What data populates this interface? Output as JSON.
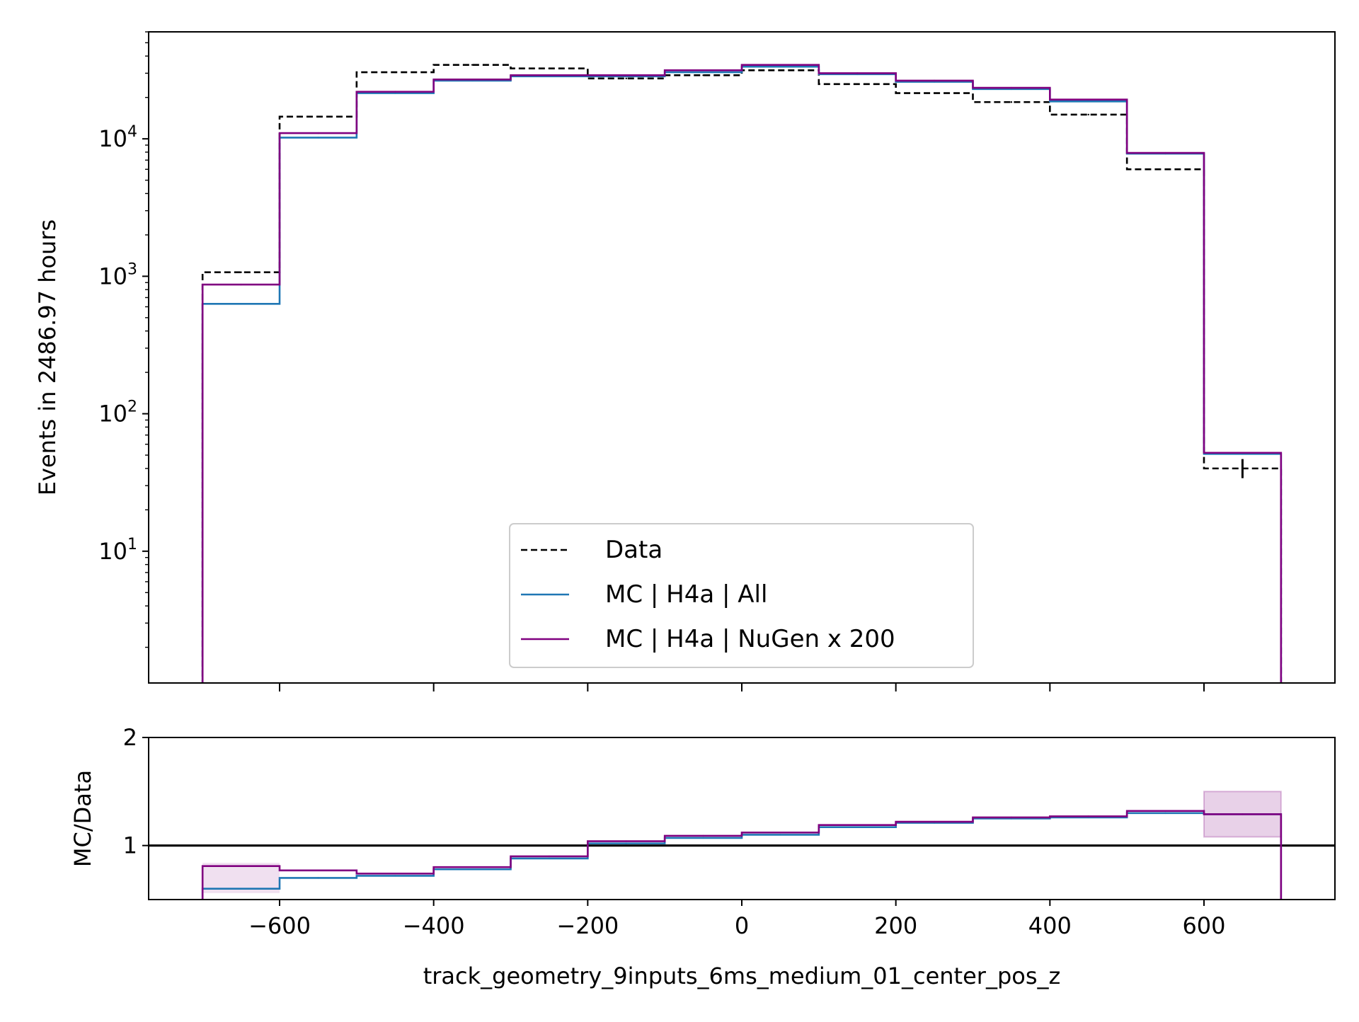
{
  "chart_data": [
    {
      "type": "histogram-step",
      "panel": "main",
      "xlabel": "",
      "ylabel": "Events in 2486.97 hours",
      "yscale": "log",
      "ylim": [
        1.1,
        60000
      ],
      "xlim": [
        -770,
        770
      ],
      "bin_edges": [
        -700,
        -600,
        -500,
        -400,
        -300,
        -200,
        -100,
        0,
        100,
        200,
        300,
        400,
        500,
        600,
        700
      ],
      "yticks": [
        {
          "value": 10,
          "base": "10",
          "exp": "1"
        },
        {
          "value": 100,
          "base": "10",
          "exp": "2"
        },
        {
          "value": 1000,
          "base": "10",
          "exp": "3"
        },
        {
          "value": 10000,
          "base": "10",
          "exp": "4"
        }
      ],
      "series": [
        {
          "name": "Data",
          "color": "#000000",
          "style": "dashed",
          "values": [
            1070,
            14500,
            30500,
            34500,
            32500,
            27500,
            29000,
            31500,
            25000,
            21500,
            18500,
            15000,
            6000,
            40
          ]
        },
        {
          "name": "MC | H4a | All",
          "color": "#1f77b4",
          "style": "solid",
          "values": [
            630,
            10200,
            21500,
            26500,
            28500,
            28500,
            30500,
            33500,
            29500,
            26000,
            23000,
            18700,
            7800,
            51
          ]
        },
        {
          "name": "MC | H4a | NuGen x 200",
          "color": "#800080",
          "style": "solid",
          "values": [
            870,
            11000,
            22000,
            27000,
            29000,
            29000,
            31500,
            34500,
            30000,
            26500,
            23500,
            19300,
            7900,
            52
          ]
        }
      ],
      "legend": "lower-center"
    },
    {
      "type": "ratio-step",
      "panel": "ratio",
      "xlabel": "track_geometry_9inputs_6ms_medium_01_center_pos_z",
      "ylabel": "MC/Data",
      "ylim": [
        0.5,
        2
      ],
      "xlim": [
        -770,
        770
      ],
      "yticks": [
        1,
        2
      ],
      "xticks": [
        -600,
        -400,
        -200,
        0,
        200,
        400,
        600
      ],
      "xtick_labels": [
        "−600",
        "−400",
        "−200",
        "0",
        "200",
        "400",
        "600"
      ],
      "reference_line": 1,
      "bin_edges": [
        -700,
        -600,
        -500,
        -400,
        -300,
        -200,
        -100,
        0,
        100,
        200,
        300,
        400,
        500,
        600,
        700
      ],
      "series": [
        {
          "name": "MC | H4a | All",
          "color": "#1f77b4",
          "values": [
            0.6,
            0.7,
            0.72,
            0.78,
            0.88,
            1.02,
            1.07,
            1.1,
            1.17,
            1.21,
            1.25,
            1.26,
            1.3,
            1.29
          ]
        },
        {
          "name": "MC | H4a | NuGen x 200",
          "color": "#800080",
          "values": [
            0.81,
            0.77,
            0.74,
            0.8,
            0.9,
            1.04,
            1.09,
            1.12,
            1.19,
            1.22,
            1.26,
            1.27,
            1.32,
            1.29
          ],
          "band_last_bin": [
            1.08,
            1.5
          ]
        }
      ]
    }
  ]
}
